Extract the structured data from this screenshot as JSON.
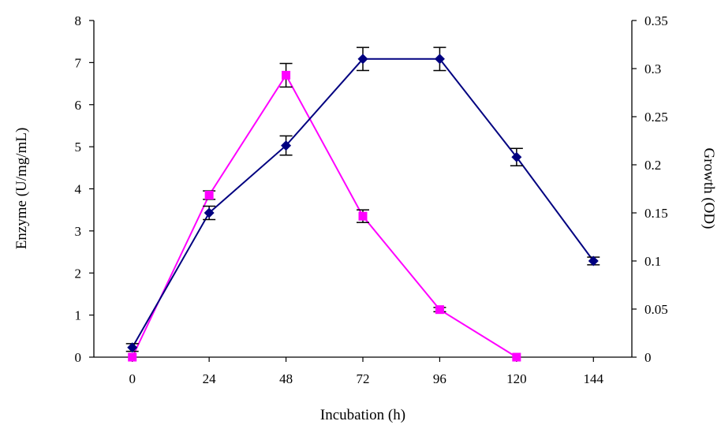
{
  "chart_data": {
    "type": "line",
    "x": [
      0,
      24,
      48,
      72,
      96,
      120,
      144
    ],
    "xlabel": "Incubation (h)",
    "ylabel": "Enzyme (U/mg/mL)",
    "y2label": "Growth (OD)",
    "xlim": [
      -12,
      156
    ],
    "ylim": [
      0,
      8
    ],
    "y2lim": [
      0,
      0.35
    ],
    "xticks": [
      "0",
      "24",
      "48",
      "72",
      "96",
      "120",
      "144"
    ],
    "yticks": [
      "0",
      "1",
      "2",
      "3",
      "4",
      "5",
      "6",
      "7",
      "8"
    ],
    "y2ticks": [
      "0",
      "0.05",
      "0.1",
      "0.15",
      "0.2",
      "0.25",
      "0.3",
      "0.35"
    ],
    "grid": false,
    "legend": "none",
    "series": [
      {
        "axis": "left",
        "color": "#ff00ff",
        "marker": "square",
        "values": [
          0,
          3.85,
          6.7,
          3.35,
          1.13,
          0
        ],
        "x": [
          0,
          24,
          48,
          72,
          96,
          120
        ],
        "errors": [
          0,
          0.1,
          0.28,
          0.15,
          0.05,
          0
        ]
      },
      {
        "axis": "right",
        "color": "#000080",
        "marker": "diamond",
        "values": [
          0.01,
          0.15,
          0.22,
          0.31,
          0.31,
          0.208,
          0.1
        ],
        "x": [
          0,
          24,
          48,
          72,
          96,
          120,
          144
        ],
        "errors": [
          0.004,
          0.007,
          0.01,
          0.012,
          0.012,
          0.009,
          0.004
        ]
      }
    ]
  }
}
